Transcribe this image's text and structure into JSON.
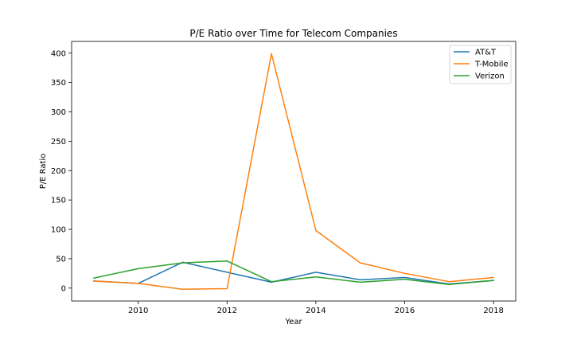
{
  "chart_data": {
    "type": "line",
    "title": "P/E Ratio over Time for Telecom Companies",
    "xlabel": "Year",
    "ylabel": "P/E Ratio",
    "x": [
      2009,
      2010,
      2011,
      2012,
      2013,
      2014,
      2015,
      2016,
      2017,
      2018
    ],
    "xlim": [
      2008.5,
      2018.5
    ],
    "ylim": [
      -22,
      420
    ],
    "xticks": [
      2010,
      2012,
      2014,
      2016,
      2018
    ],
    "yticks": [
      0,
      50,
      100,
      150,
      200,
      250,
      300,
      350,
      400
    ],
    "grid": false,
    "legend_position": "top-right",
    "series": [
      {
        "name": "AT&T",
        "color": "#1f77b4",
        "values": [
          12,
          8,
          44,
          27,
          10,
          27,
          14,
          18,
          7,
          13
        ]
      },
      {
        "name": "T-Mobile",
        "color": "#ff7f0e",
        "values": [
          12,
          8,
          -2,
          -1,
          399,
          98,
          43,
          25,
          11,
          18
        ]
      },
      {
        "name": "Verizon",
        "color": "#2ca02c",
        "values": [
          17,
          33,
          43,
          46,
          11,
          19,
          10,
          15,
          6,
          13
        ]
      }
    ]
  }
}
